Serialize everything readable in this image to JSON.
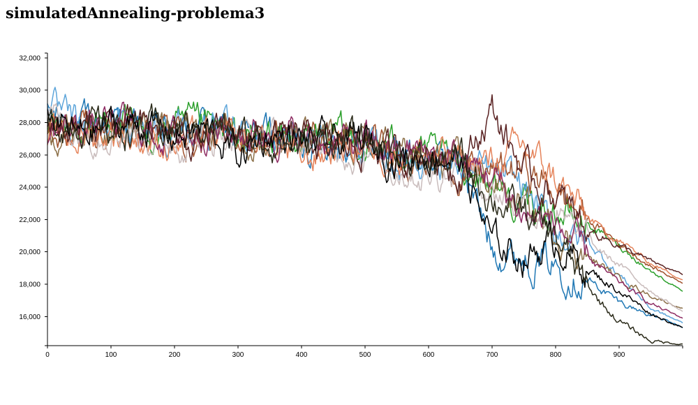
{
  "chart_data": {
    "type": "line",
    "title": "simulatedAnnealing-problema3",
    "xlabel": "",
    "ylabel": "",
    "xlim": [
      0,
      1000
    ],
    "ylim": [
      14200,
      32300
    ],
    "x_ticks": [
      0,
      100,
      200,
      300,
      400,
      500,
      600,
      700,
      800,
      900
    ],
    "y_ticks": [
      16000,
      18000,
      20000,
      22000,
      24000,
      26000,
      28000,
      30000,
      32000
    ],
    "x_tick_labels": [
      "0",
      "100",
      "200",
      "300",
      "400",
      "500",
      "600",
      "700",
      "800",
      "900"
    ],
    "y_tick_labels": [
      "16,000",
      "18,000",
      "20,000",
      "22,000",
      "24,000",
      "26,000",
      "28,000",
      "30,000",
      "32,000"
    ],
    "grid": false,
    "legend": "none",
    "x": [
      0,
      50,
      100,
      150,
      200,
      250,
      300,
      350,
      400,
      450,
      500,
      550,
      600,
      650,
      700,
      750,
      800,
      850,
      900,
      950,
      1000
    ],
    "series": [
      {
        "color": "#1f77b4",
        "values": [
          28500,
          27800,
          28200,
          27600,
          27300,
          27900,
          27000,
          27400,
          26800,
          27100,
          26500,
          26200,
          25700,
          25800,
          20300,
          19700,
          19200,
          18300,
          16900,
          16100,
          15300
        ]
      },
      {
        "color": "#2ca02c",
        "values": [
          28000,
          27300,
          28400,
          27100,
          27600,
          27800,
          26900,
          27200,
          27000,
          27300,
          26600,
          26500,
          26000,
          25500,
          24300,
          22700,
          22500,
          21700,
          20400,
          18800,
          17600
        ]
      },
      {
        "color": "#5da5da",
        "values": [
          28800,
          27700,
          27900,
          27700,
          27500,
          27600,
          27300,
          27100,
          26900,
          26800,
          26400,
          25600,
          25900,
          25300,
          24800,
          24100,
          21200,
          20600,
          18600,
          16500,
          15600
        ]
      },
      {
        "color": "#a0522d",
        "values": [
          27500,
          27900,
          27600,
          28000,
          27400,
          26700,
          27200,
          26900,
          27100,
          26700,
          26600,
          26100,
          25800,
          24900,
          24900,
          25200,
          23700,
          22100,
          20500,
          19100,
          18100
        ]
      },
      {
        "color": "#8b6f47",
        "values": [
          27200,
          27600,
          28200,
          27400,
          27800,
          27500,
          27300,
          26800,
          27000,
          26900,
          26700,
          26400,
          25500,
          25300,
          24400,
          22700,
          21400,
          19700,
          18400,
          17300,
          16500
        ]
      },
      {
        "color": "#e5835a",
        "values": [
          27000,
          27100,
          27400,
          26900,
          26600,
          27000,
          26900,
          27000,
          25600,
          26400,
          26600,
          26000,
          26100,
          25600,
          25500,
          26500,
          24500,
          22100,
          20700,
          19300,
          18300
        ]
      },
      {
        "color": "#c9bcbc",
        "values": [
          28600,
          27300,
          27700,
          27300,
          26800,
          27100,
          27500,
          27000,
          26700,
          26500,
          26100,
          25200,
          24700,
          25500,
          23900,
          22800,
          22000,
          20600,
          19200,
          17600,
          16300
        ]
      },
      {
        "color": "#8e2c63",
        "values": [
          27400,
          27700,
          28100,
          27600,
          27100,
          27700,
          27300,
          27400,
          27000,
          26800,
          26700,
          26200,
          26200,
          25600,
          24700,
          22300,
          21800,
          19600,
          18100,
          16800,
          15900
        ]
      },
      {
        "color": "#5a2323",
        "values": [
          28100,
          27500,
          28000,
          27600,
          27300,
          26800,
          27400,
          27000,
          27000,
          26500,
          26600,
          26000,
          26200,
          25000,
          28800,
          25000,
          23400,
          21500,
          20400,
          19400,
          18600
        ]
      },
      {
        "color": "#000000",
        "values": [
          28300,
          27200,
          27800,
          27900,
          27200,
          27500,
          26000,
          27300,
          26800,
          26800,
          26900,
          25700,
          26100,
          25700,
          20600,
          19700,
          20700,
          18900,
          17600,
          16200,
          15300
        ]
      },
      {
        "color": "#2b2b1a",
        "values": [
          27900,
          28000,
          27500,
          27700,
          27500,
          27900,
          27100,
          26900,
          26500,
          27000,
          26800,
          26200,
          25300,
          25800,
          23300,
          22400,
          20900,
          17700,
          15700,
          14500,
          14300
        ]
      }
    ]
  }
}
